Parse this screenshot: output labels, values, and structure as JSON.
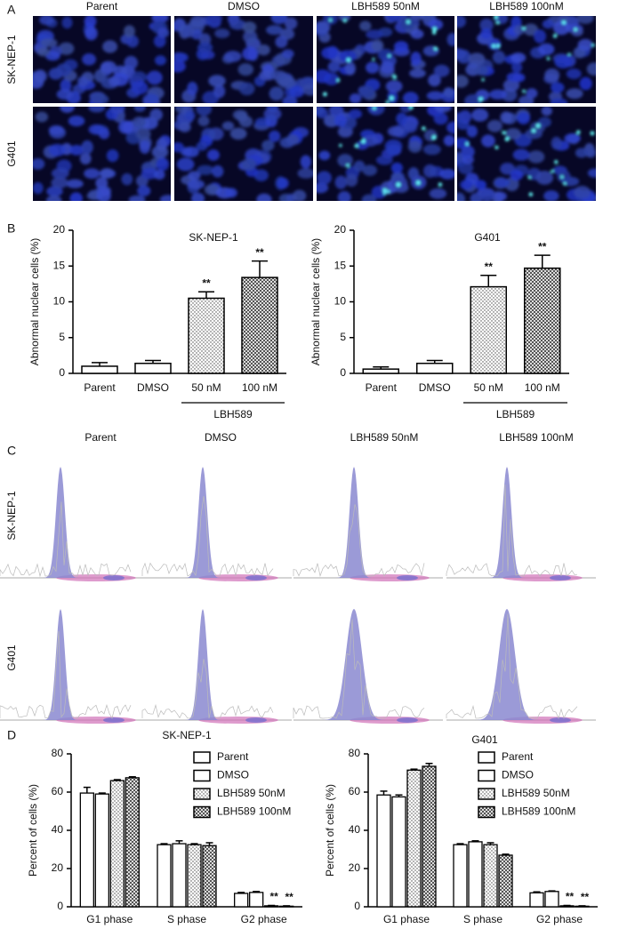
{
  "panels": {
    "A": {
      "label": "A",
      "columns": [
        "Parent",
        "DMSO",
        "LBH589 50nM",
        "LBH589 100nM"
      ],
      "rows": [
        "SK-NEP-1",
        "G401"
      ]
    },
    "B": {
      "label": "B"
    },
    "C": {
      "label": "C",
      "columns": [
        "Parent",
        "DMSO",
        "LBH589 50nM",
        "LBH589 100nM"
      ],
      "rows": [
        "SK-NEP-1",
        "G401"
      ]
    },
    "D": {
      "label": "D"
    }
  },
  "chart_data": [
    {
      "type": "bar",
      "title": "SK-NEP-1",
      "ylabel": "Abnormal nuclear cells (%)",
      "categories": [
        "Parent",
        "DMSO",
        "50 nM",
        "100 nM"
      ],
      "values": [
        1.0,
        1.4,
        10.5,
        13.4
      ],
      "errors": [
        0.5,
        0.4,
        0.9,
        2.3
      ],
      "annotations": [
        null,
        null,
        "**",
        "**"
      ],
      "fills": [
        "white",
        "white",
        "dots",
        "checks"
      ],
      "group_label": "LBH589",
      "ylim": [
        0,
        20
      ],
      "yticks": [
        0,
        5,
        10,
        15,
        20
      ]
    },
    {
      "type": "bar",
      "title": "G401",
      "ylabel": "Abnormal nuclear cells (%)",
      "categories": [
        "Parent",
        "DMSO",
        "50 nM",
        "100 nM"
      ],
      "values": [
        0.6,
        1.4,
        12.1,
        14.7
      ],
      "errors": [
        0.3,
        0.4,
        1.6,
        1.8
      ],
      "annotations": [
        null,
        null,
        "**",
        "**"
      ],
      "fills": [
        "white",
        "white",
        "dots",
        "checks"
      ],
      "group_label": "LBH589",
      "ylim": [
        0,
        20
      ],
      "yticks": [
        0,
        5,
        10,
        15,
        20
      ]
    },
    {
      "type": "grouped_bar",
      "title": "SK-NEP-1",
      "ylabel": "Percent of cells (%)",
      "categories": [
        "G1 phase",
        "S phase",
        "G2 phase"
      ],
      "legend": "top-right",
      "series": [
        {
          "name": "Parent",
          "fill": "white",
          "values": [
            59.5,
            32.5,
            7.0
          ],
          "errors": [
            3.0,
            0.5,
            0.5
          ]
        },
        {
          "name": "DMSO",
          "fill": "white",
          "values": [
            59.0,
            33.0,
            7.5
          ],
          "errors": [
            0.5,
            1.5,
            0.5
          ]
        },
        {
          "name": "LBH589 50nM",
          "fill": "dots",
          "values": [
            66.0,
            32.5,
            0.5
          ],
          "errors": [
            0.5,
            0.5,
            0.2
          ],
          "annotations": [
            null,
            null,
            "**"
          ]
        },
        {
          "name": "LBH589 100nM",
          "fill": "checks",
          "values": [
            67.5,
            32.0,
            0.3
          ],
          "errors": [
            0.5,
            1.5,
            0.2
          ],
          "annotations": [
            null,
            null,
            "**"
          ]
        }
      ],
      "ylim": [
        0,
        80
      ],
      "yticks": [
        0,
        20,
        40,
        60,
        80
      ]
    },
    {
      "type": "grouped_bar",
      "title": "G401",
      "ylabel": "Percent of cells (%)",
      "categories": [
        "G1 phase",
        "S phase",
        "G2 phase"
      ],
      "legend": "top-right",
      "series": [
        {
          "name": "Parent",
          "fill": "white",
          "values": [
            58.5,
            32.5,
            7.3
          ],
          "errors": [
            2.0,
            0.5,
            0.5
          ]
        },
        {
          "name": "DMSO",
          "fill": "white",
          "values": [
            57.5,
            34.0,
            8.0
          ],
          "errors": [
            1.0,
            0.5,
            0.3
          ]
        },
        {
          "name": "LBH589 50nM",
          "fill": "dots",
          "values": [
            71.5,
            32.5,
            0.5
          ],
          "errors": [
            0.5,
            1.0,
            0.2
          ],
          "annotations": [
            null,
            null,
            "**"
          ]
        },
        {
          "name": "LBH589 100nM",
          "fill": "checks",
          "values": [
            73.5,
            27.0,
            0.3
          ],
          "errors": [
            1.5,
            0.5,
            0.2
          ],
          "annotations": [
            null,
            null,
            "**"
          ]
        }
      ],
      "ylim": [
        0,
        80
      ],
      "yticks": [
        0,
        20,
        40,
        60,
        80
      ]
    }
  ]
}
